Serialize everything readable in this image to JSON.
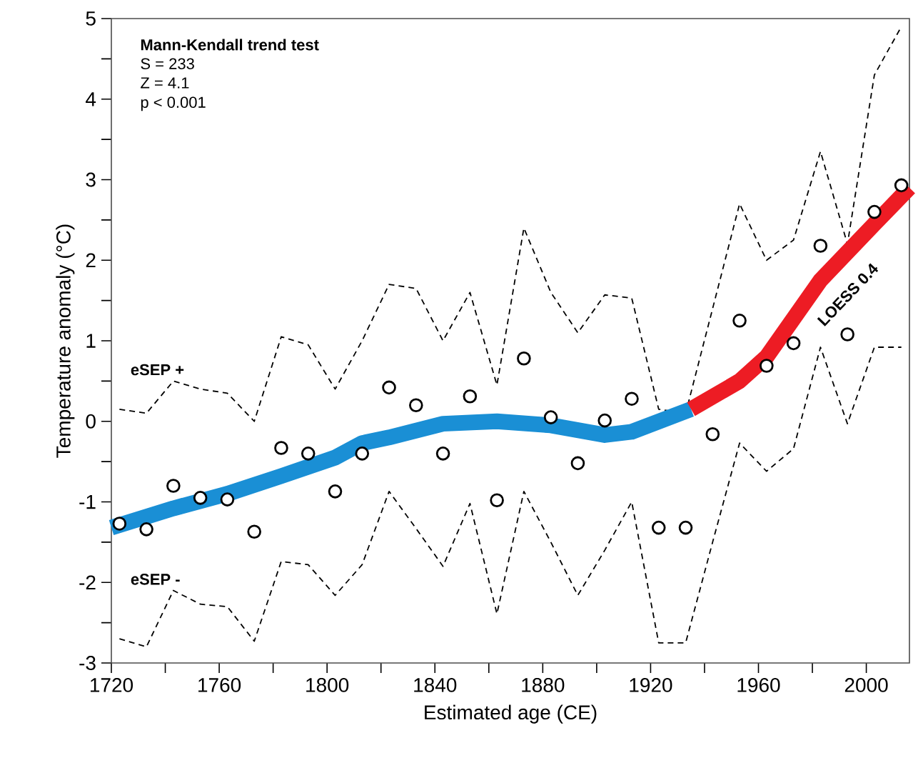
{
  "chart_data": {
    "type": "scatter",
    "xlabel": "Estimated age (CE)",
    "ylabel": "Temperature anomaly (°C)",
    "annotations": [
      "Mann-Kendall trend test",
      "S  = 233",
      "Z = 4.1",
      "p < 0.001"
    ],
    "xlim": [
      1720,
      2016
    ],
    "ylim": [
      -3,
      5
    ],
    "xticks": [
      1720,
      {
        "value": 1740,
        "label": null
      },
      1760,
      {
        "value": 1780,
        "label": null
      },
      1800,
      {
        "value": 1820,
        "label": null
      },
      1840,
      {
        "value": 1860,
        "label": null
      },
      1880,
      {
        "value": 1900,
        "label": null
      },
      1920,
      {
        "value": 1940,
        "label": null
      },
      1960,
      {
        "value": 1980,
        "label": null
      },
      2000
    ],
    "yticks": [
      -3,
      {
        "value": -2.5,
        "label": null
      },
      -2,
      {
        "value": -1.5,
        "label": null
      },
      -1,
      {
        "value": -0.5,
        "label": null
      },
      0,
      {
        "value": 0.5,
        "label": null
      },
      1,
      {
        "value": 1.5,
        "label": null
      },
      2,
      {
        "value": 2.5,
        "label": null
      },
      3,
      {
        "value": 3.5,
        "label": null
      },
      4,
      {
        "value": 4.5,
        "label": null
      },
      5
    ],
    "grid": false,
    "series": [
      {
        "type": "line",
        "name": "eSEP +",
        "color": "#000000",
        "line_style": "dashed",
        "marker": "none",
        "x": [
          1723,
          1733,
          1743,
          1753,
          1763,
          1773,
          1783,
          1793,
          1803,
          1813,
          1823,
          1833,
          1843,
          1853,
          1863,
          1873,
          1883,
          1893,
          1903,
          1913,
          1923,
          1933,
          1943,
          1953,
          1963,
          1973,
          1983,
          1993,
          2003,
          2013
        ],
        "values": [
          0.15,
          0.1,
          0.5,
          0.4,
          0.35,
          0.0,
          1.05,
          0.95,
          0.4,
          1.0,
          1.7,
          1.65,
          1.0,
          1.6,
          0.45,
          2.4,
          1.6,
          1.1,
          1.57,
          1.53,
          0.15,
          0.1,
          1.4,
          2.7,
          2.0,
          2.25,
          3.35,
          2.2,
          4.3,
          4.9
        ]
      },
      {
        "type": "line",
        "name": "eSEP -",
        "color": "#000000",
        "line_style": "dashed",
        "marker": "none",
        "x": [
          1723,
          1733,
          1743,
          1753,
          1763,
          1773,
          1783,
          1793,
          1803,
          1813,
          1823,
          1833,
          1843,
          1853,
          1863,
          1873,
          1883,
          1893,
          1903,
          1913,
          1923,
          1933,
          1943,
          1953,
          1963,
          1973,
          1983,
          1993,
          2003,
          2013
        ],
        "values": [
          -2.7,
          -2.8,
          -2.1,
          -2.27,
          -2.3,
          -2.73,
          -1.74,
          -1.78,
          -2.16,
          -1.78,
          -0.87,
          -1.33,
          -1.8,
          -1.02,
          -2.39,
          -0.87,
          -1.5,
          -2.16,
          -1.6,
          -1.0,
          -2.75,
          -2.75,
          -1.5,
          -0.27,
          -0.62,
          -0.34,
          0.92,
          -0.03,
          0.92,
          0.92
        ]
      },
      {
        "type": "line",
        "color": "#1a8fd5",
        "line_style": "solid",
        "marker": "none",
        "x": [
          1720,
          1743,
          1763,
          1783,
          1803,
          1813,
          1823,
          1843,
          1863,
          1883,
          1903,
          1913,
          1935
        ],
        "values": [
          -1.32,
          -1.08,
          -0.9,
          -0.68,
          -0.45,
          -0.27,
          -0.2,
          -0.03,
          0.0,
          -0.05,
          -0.17,
          -0.13,
          0.15
        ]
      },
      {
        "type": "line",
        "name": "LOESS 0.4",
        "color": "#ed1c24",
        "line_style": "solid",
        "marker": "none",
        "x": [
          1935,
          1953,
          1963,
          1983,
          2003,
          2016
        ],
        "values": [
          0.15,
          0.5,
          0.8,
          1.75,
          2.45,
          2.9
        ]
      },
      {
        "color": "#000000",
        "marker": "circle",
        "x": [
          1723,
          1733,
          1743,
          1753,
          1763,
          1773,
          1783,
          1793,
          1803,
          1813,
          1823,
          1833,
          1843,
          1853,
          1863,
          1873,
          1883,
          1893,
          1903,
          1913,
          1923,
          1933,
          1943,
          1953,
          1963,
          1973,
          1983,
          1993,
          2003,
          2013
        ],
        "values": [
          -1.27,
          -1.34,
          -0.8,
          -0.95,
          -0.97,
          -1.37,
          -0.33,
          -0.4,
          -0.87,
          -0.4,
          0.42,
          0.2,
          -0.4,
          0.31,
          -0.98,
          0.78,
          0.05,
          -0.52,
          0.01,
          0.28,
          -1.32,
          -1.32,
          -0.16,
          1.25,
          0.69,
          0.97,
          2.18,
          1.08,
          2.6,
          2.93
        ]
      }
    ]
  }
}
